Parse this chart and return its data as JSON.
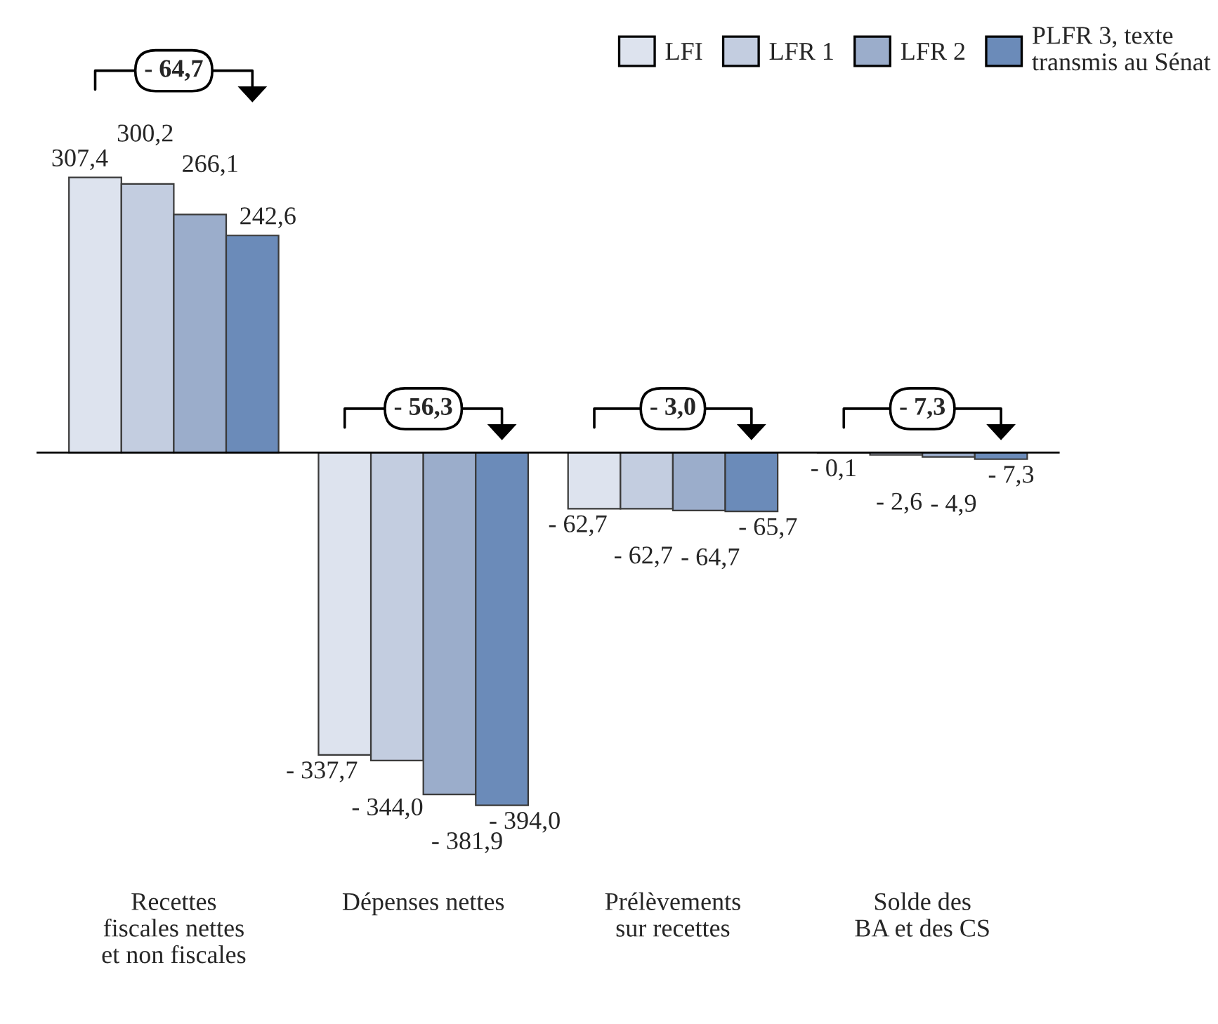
{
  "chart_data": {
    "type": "bar",
    "categories": [
      "Recettes\nfiscales nettes\net non fiscales",
      "Dépenses nettes",
      "Prélèvements\nsur recettes",
      "Solde des\nBA et des CS"
    ],
    "series": [
      {
        "name": "LFI",
        "color": "#dde3ee",
        "values": [
          307.4,
          -337.7,
          -62.7,
          -0.1
        ],
        "value_labels": [
          "307,4",
          "- 337,7",
          "- 62,7",
          "- 0,1"
        ]
      },
      {
        "name": "LFR 1",
        "color": "#c3cde0",
        "values": [
          300.2,
          -344.0,
          -62.7,
          -2.6
        ],
        "value_labels": [
          "300,2",
          "- 344,0",
          "- 62,7",
          "- 2,6"
        ]
      },
      {
        "name": "LFR 2",
        "color": "#9badcb",
        "values": [
          266.1,
          -381.9,
          -64.7,
          -4.9
        ],
        "value_labels": [
          "266,1",
          "- 381,9",
          "- 64,7",
          "- 4,9"
        ]
      },
      {
        "name": "PLFR 3, texte\ntransmis au Sénat",
        "color": "#6b8bb9",
        "values": [
          242.6,
          -394.0,
          -65.7,
          -7.3
        ],
        "value_labels": [
          "242,6",
          "- 394,0",
          "- 65,7",
          "- 7,3"
        ]
      }
    ],
    "annotations": [
      "- 64,7",
      "- 56,3",
      "- 3,0",
      "- 7,3"
    ],
    "legend": "top right",
    "grid": false
  }
}
